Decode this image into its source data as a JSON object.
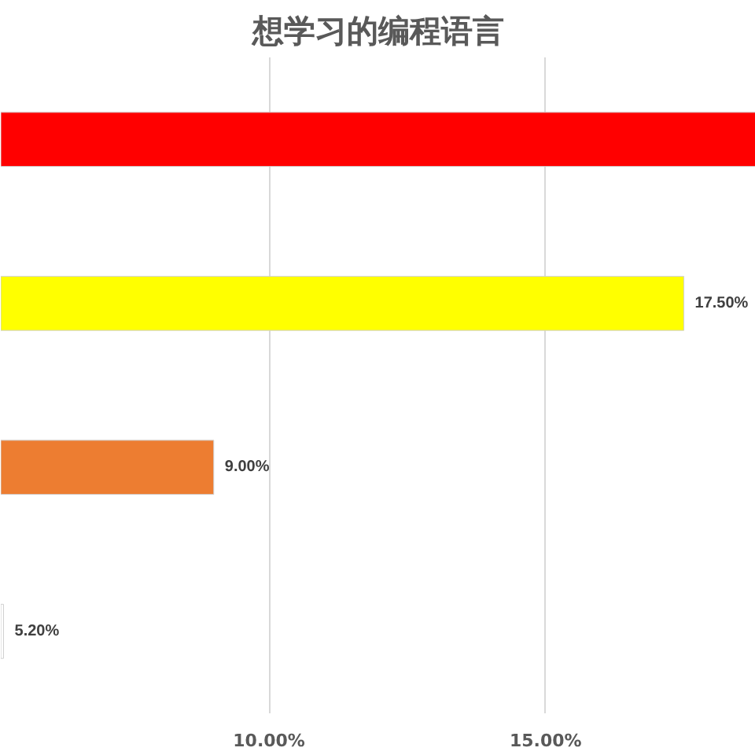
{
  "chart_data": {
    "type": "bar",
    "orientation": "horizontal",
    "title": "想学习的编程语言",
    "categories": [
      null,
      null,
      null,
      null
    ],
    "values": [
      18.8,
      17.5,
      9.0,
      5.2
    ],
    "colors": [
      "#ff0000",
      "#ffff00",
      "#ed7d31",
      "#ffffff"
    ],
    "value_labels": [
      null,
      "17.50%",
      "9.00%",
      "5.20%"
    ],
    "xlim": [
      5.15,
      18.8
    ],
    "xticks": [
      {
        "value": 10,
        "label": "10.00%"
      },
      {
        "value": 15,
        "label": "15.00%"
      }
    ],
    "grid": "x"
  }
}
